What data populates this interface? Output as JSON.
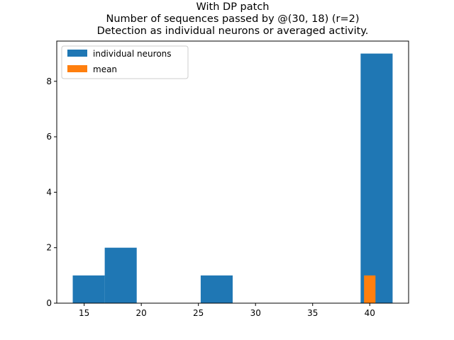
{
  "chart_data": {
    "type": "bar",
    "title_lines": [
      "With DP patch",
      "Number of sequences passed by @(30, 18) (r=2)",
      "Detection as individual neurons or averaged activity."
    ],
    "xlabel": "",
    "ylabel": "",
    "xlim": [
      12.6,
      43.4
    ],
    "ylim": [
      0,
      9.45
    ],
    "x_ticks": [
      15,
      20,
      25,
      30,
      35,
      40
    ],
    "y_ticks": [
      0,
      2,
      4,
      6,
      8
    ],
    "grid": false,
    "legend": "top-left",
    "series": [
      {
        "name": "individual neurons",
        "color": "#1f77b4",
        "bins": [
          {
            "x0": 14.0,
            "x1": 16.8,
            "count": 1
          },
          {
            "x0": 16.8,
            "x1": 19.6,
            "count": 2
          },
          {
            "x0": 19.6,
            "x1": 22.4,
            "count": 0
          },
          {
            "x0": 22.4,
            "x1": 25.2,
            "count": 0
          },
          {
            "x0": 25.2,
            "x1": 28.0,
            "count": 1
          },
          {
            "x0": 28.0,
            "x1": 30.8,
            "count": 0
          },
          {
            "x0": 30.8,
            "x1": 33.6,
            "count": 0
          },
          {
            "x0": 33.6,
            "x1": 36.4,
            "count": 0
          },
          {
            "x0": 36.4,
            "x1": 39.2,
            "count": 0
          },
          {
            "x0": 39.2,
            "x1": 42.0,
            "count": 9
          }
        ]
      },
      {
        "name": "mean",
        "color": "#ff7f0e",
        "bins": [
          {
            "x0": 39.5,
            "x1": 40.5,
            "count": 1
          }
        ]
      }
    ]
  }
}
